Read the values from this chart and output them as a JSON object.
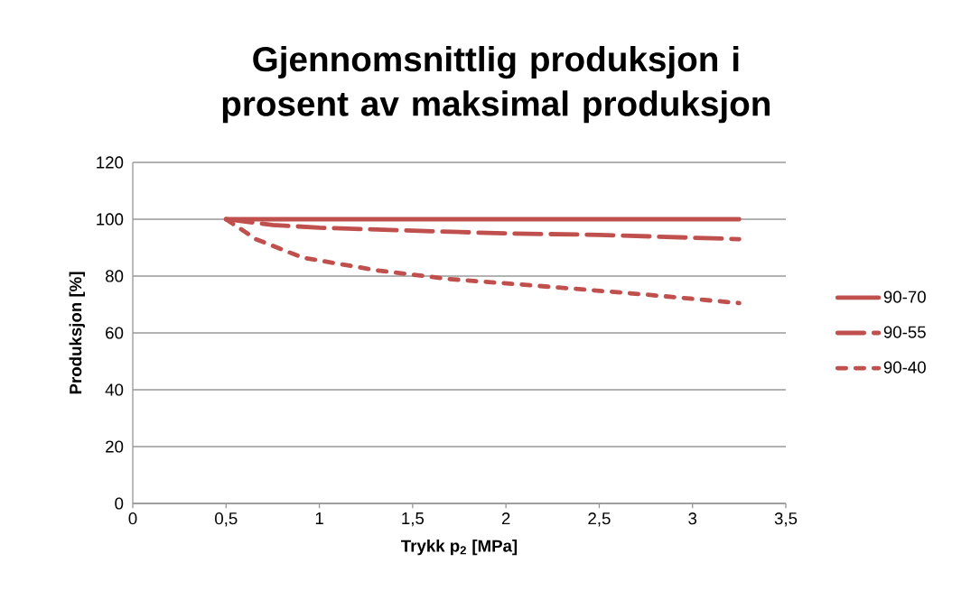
{
  "chart_data": {
    "type": "line",
    "title": "Gjennomsnittlig produksjon i prosent av maksimal produksjon",
    "xlabel": "Trykk p$_{2}$ [MPa]",
    "ylabel": "Produksjon [%]",
    "xlim": [
      0,
      3.5
    ],
    "ylim": [
      0,
      120
    ],
    "xticks": [
      0,
      {
        "value": 0.5,
        "label": "0,5"
      },
      1,
      {
        "value": 1.5,
        "label": "1,5"
      },
      2,
      {
        "value": 2.5,
        "label": "2,5"
      },
      3,
      {
        "value": 3.5,
        "label": "3,5"
      }
    ],
    "yticks": [
      0,
      20,
      40,
      60,
      80,
      100,
      120
    ],
    "grid": "y",
    "legend": "right",
    "marker": "none",
    "series": [
      {
        "name": "90-70",
        "color": "#c0504d",
        "line_style": "solid",
        "x": [
          0.5,
          3.25
        ],
        "values": [
          100,
          100
        ]
      },
      {
        "name": "90-55",
        "color": "#c0504d",
        "line_style": "dashed",
        "x": [
          0.5,
          0.75,
          1,
          1.5,
          2,
          2.5,
          3,
          3.25
        ],
        "values": [
          100,
          98,
          97,
          96,
          95,
          94.5,
          93.5,
          93
        ]
      },
      {
        "name": "90-40",
        "color": "#c0504d",
        "line_style": "dashed",
        "x": [
          0.5,
          0.66,
          0.91,
          1.31,
          1.69,
          2.28,
          2.75,
          3.25
        ],
        "values": [
          100,
          93,
          86.5,
          82,
          79,
          76,
          73.5,
          70.5
        ]
      }
    ]
  }
}
